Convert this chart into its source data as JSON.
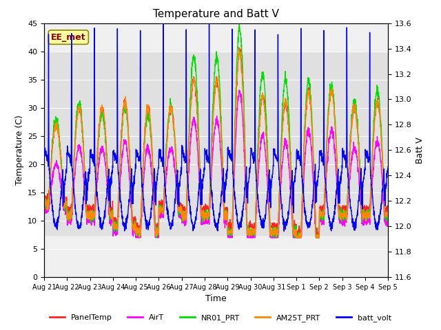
{
  "title": "Temperature and Batt V",
  "xlabel": "Time",
  "ylabel_left": "Temperature (C)",
  "ylabel_right": "Batt V",
  "ylim_left": [
    0,
    45
  ],
  "ylim_right": [
    11.6,
    13.6
  ],
  "yticks_left": [
    0,
    5,
    10,
    15,
    20,
    25,
    30,
    35,
    40,
    45
  ],
  "yticks_right": [
    11.6,
    11.8,
    12.0,
    12.2,
    12.4,
    12.6,
    12.8,
    13.0,
    13.2,
    13.4,
    13.6
  ],
  "x_tick_labels": [
    "Aug 21",
    "Aug 22",
    "Aug 23",
    "Aug 24",
    "Aug 25",
    "Aug 26",
    "Aug 27",
    "Aug 28",
    "Aug 29",
    "Aug 30",
    "Aug 31",
    "Sep 1",
    "Sep 2",
    "Sep 3",
    "Sep 4",
    "Sep 5"
  ],
  "annotation_text": "EE_met",
  "annotation_color": "#8B0000",
  "annotation_bg": "#FFFFA0",
  "bg_band_color": "#d8d8d8",
  "bg_band_ylim": [
    7.5,
    40
  ],
  "series": {
    "PanelTemp": {
      "color": "#FF2222",
      "lw": 1.0
    },
    "AirT": {
      "color": "#FF00FF",
      "lw": 1.0
    },
    "NR01_PRT": {
      "color": "#00DD00",
      "lw": 1.0
    },
    "AM25T_PRT": {
      "color": "#FF8800",
      "lw": 1.0
    },
    "batt_volt": {
      "color": "#0000FF",
      "lw": 1.0
    }
  },
  "legend_entries": [
    "PanelTemp",
    "AirT",
    "NR01_PRT",
    "AM25T_PRT",
    "batt_volt"
  ],
  "legend_colors": [
    "#FF2222",
    "#FF00FF",
    "#00DD00",
    "#FF8800",
    "#0000FF"
  ],
  "n_days": 15,
  "pts_per_day": 144,
  "panel_peaks": [
    27,
    30,
    30,
    31,
    30,
    30,
    35,
    35,
    40,
    32,
    31,
    33,
    33,
    30,
    31
  ],
  "panel_nights": [
    14,
    12,
    12,
    10,
    9,
    13,
    12,
    12,
    9,
    9,
    9,
    8,
    12,
    12,
    12
  ],
  "nr01_extra": [
    2,
    2,
    0,
    0,
    0,
    1,
    5,
    5,
    5,
    5,
    5,
    3,
    2,
    2,
    3
  ]
}
